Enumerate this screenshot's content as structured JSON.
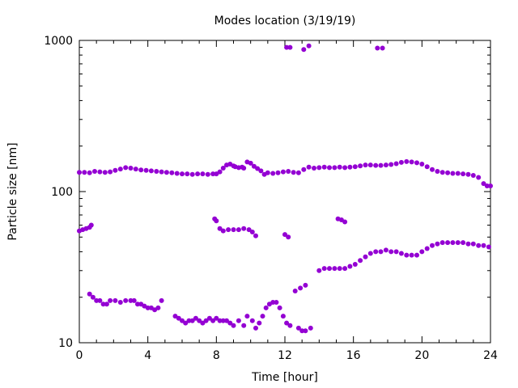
{
  "chart_data": {
    "type": "scatter",
    "title": "Modes location (3/19/19)",
    "xlabel": "Time [hour]",
    "ylabel": "Particle size [nm]",
    "xlim": [
      0,
      24
    ],
    "ylim": [
      10,
      1000
    ],
    "yscale": "log",
    "x_ticks": [
      0,
      4,
      8,
      12,
      16,
      20,
      24
    ],
    "y_ticks": [
      10,
      100,
      1000
    ],
    "grid": false,
    "marker_color": "#9400d3",
    "series": [
      {
        "points": [
          [
            0.0,
            134
          ],
          [
            0.3,
            134
          ],
          [
            0.6,
            133
          ],
          [
            0.9,
            136
          ],
          [
            1.2,
            135
          ],
          [
            1.5,
            134
          ],
          [
            1.8,
            135
          ],
          [
            2.1,
            138
          ],
          [
            2.4,
            141
          ],
          [
            2.7,
            144
          ],
          [
            3.0,
            143
          ],
          [
            3.3,
            141
          ],
          [
            3.6,
            139
          ],
          [
            3.9,
            138
          ],
          [
            4.2,
            137
          ],
          [
            4.5,
            136
          ],
          [
            4.8,
            135
          ],
          [
            5.1,
            134
          ],
          [
            5.4,
            133
          ],
          [
            5.7,
            132
          ],
          [
            6.0,
            131
          ],
          [
            6.3,
            131
          ],
          [
            6.6,
            130
          ],
          [
            6.9,
            131
          ],
          [
            7.2,
            131
          ],
          [
            7.5,
            130
          ],
          [
            7.8,
            131
          ],
          [
            8.0,
            131
          ],
          [
            8.2,
            135
          ],
          [
            8.4,
            143
          ],
          [
            8.6,
            150
          ],
          [
            8.8,
            152
          ],
          [
            9.0,
            148
          ],
          [
            9.1,
            146
          ],
          [
            9.3,
            144
          ],
          [
            9.5,
            145
          ],
          [
            9.6,
            143
          ],
          [
            9.8,
            157
          ],
          [
            10.0,
            154
          ],
          [
            10.2,
            147
          ],
          [
            10.4,
            142
          ],
          [
            10.6,
            137
          ],
          [
            10.8,
            130
          ],
          [
            11.0,
            133
          ],
          [
            11.3,
            132
          ],
          [
            11.6,
            133
          ],
          [
            11.9,
            135
          ],
          [
            12.2,
            136
          ],
          [
            12.5,
            134
          ],
          [
            12.8,
            133
          ],
          [
            13.1,
            140
          ],
          [
            13.4,
            145
          ],
          [
            13.7,
            143
          ],
          [
            14.0,
            144
          ],
          [
            14.3,
            145
          ],
          [
            14.6,
            144
          ],
          [
            14.9,
            144
          ],
          [
            15.2,
            145
          ],
          [
            15.5,
            144
          ],
          [
            15.8,
            145
          ],
          [
            16.1,
            146
          ],
          [
            16.4,
            148
          ],
          [
            16.7,
            150
          ],
          [
            17.0,
            150
          ],
          [
            17.3,
            149
          ],
          [
            17.6,
            149
          ],
          [
            17.9,
            150
          ],
          [
            18.2,
            151
          ],
          [
            18.5,
            153
          ],
          [
            18.8,
            156
          ],
          [
            19.1,
            158
          ],
          [
            19.4,
            157
          ],
          [
            19.7,
            155
          ],
          [
            20.0,
            152
          ],
          [
            20.3,
            146
          ],
          [
            20.6,
            140
          ],
          [
            20.9,
            136
          ],
          [
            21.2,
            134
          ],
          [
            21.5,
            133
          ],
          [
            21.8,
            132
          ],
          [
            22.1,
            132
          ],
          [
            22.4,
            131
          ],
          [
            22.7,
            130
          ],
          [
            23.0,
            128
          ],
          [
            23.3,
            124
          ],
          [
            23.6,
            113
          ],
          [
            23.8,
            109
          ],
          [
            24.0,
            109
          ]
        ]
      },
      {
        "points": [
          [
            0.0,
            55
          ],
          [
            0.2,
            56
          ],
          [
            0.4,
            57
          ],
          [
            0.6,
            58
          ],
          [
            0.7,
            60
          ],
          [
            7.9,
            66
          ],
          [
            8.0,
            64
          ],
          [
            8.2,
            57
          ],
          [
            8.4,
            55
          ],
          [
            8.7,
            56
          ],
          [
            9.0,
            56
          ],
          [
            9.3,
            56
          ],
          [
            9.6,
            57
          ],
          [
            9.9,
            56
          ],
          [
            10.1,
            54
          ],
          [
            10.3,
            51
          ],
          [
            12.0,
            52
          ],
          [
            12.2,
            50
          ],
          [
            15.1,
            66
          ],
          [
            15.3,
            65
          ],
          [
            15.5,
            63
          ],
          [
            14.0,
            30
          ],
          [
            14.3,
            31
          ],
          [
            14.6,
            31
          ],
          [
            14.9,
            31
          ],
          [
            15.2,
            31
          ],
          [
            15.5,
            31
          ],
          [
            15.8,
            32
          ],
          [
            16.1,
            33
          ],
          [
            16.4,
            35
          ],
          [
            16.7,
            37
          ],
          [
            17.0,
            39
          ],
          [
            17.3,
            40
          ],
          [
            17.6,
            40
          ],
          [
            17.9,
            41
          ],
          [
            18.2,
            40
          ],
          [
            18.5,
            40
          ],
          [
            18.8,
            39
          ],
          [
            19.1,
            38
          ],
          [
            19.4,
            38
          ],
          [
            19.7,
            38
          ],
          [
            20.0,
            40
          ],
          [
            20.3,
            42
          ],
          [
            20.6,
            44
          ],
          [
            20.9,
            45
          ],
          [
            21.2,
            46
          ],
          [
            21.5,
            46
          ],
          [
            21.8,
            46
          ],
          [
            22.1,
            46
          ],
          [
            22.4,
            46
          ],
          [
            22.7,
            45
          ],
          [
            23.0,
            45
          ],
          [
            23.3,
            44
          ],
          [
            23.6,
            44
          ],
          [
            23.9,
            43
          ]
        ]
      },
      {
        "points": [
          [
            0.6,
            21
          ],
          [
            0.8,
            20
          ],
          [
            1.0,
            19
          ],
          [
            1.2,
            19
          ],
          [
            1.4,
            18
          ],
          [
            1.6,
            18
          ],
          [
            1.8,
            19
          ],
          [
            2.1,
            19
          ],
          [
            2.4,
            18.5
          ],
          [
            2.7,
            19
          ],
          [
            3.0,
            19
          ],
          [
            3.2,
            19
          ],
          [
            3.4,
            18
          ],
          [
            3.6,
            18
          ],
          [
            3.8,
            17.5
          ],
          [
            4.0,
            17
          ],
          [
            4.2,
            17
          ],
          [
            4.4,
            16.5
          ],
          [
            4.6,
            17
          ],
          [
            4.8,
            19
          ],
          [
            5.6,
            15
          ],
          [
            5.8,
            14.5
          ],
          [
            6.0,
            14
          ],
          [
            6.2,
            13.5
          ],
          [
            6.4,
            14
          ],
          [
            6.6,
            14
          ],
          [
            6.8,
            14.5
          ],
          [
            7.0,
            14
          ],
          [
            7.2,
            13.5
          ],
          [
            7.4,
            14
          ],
          [
            7.6,
            14.5
          ],
          [
            7.8,
            14
          ],
          [
            8.0,
            14.5
          ],
          [
            8.2,
            14
          ],
          [
            8.4,
            14
          ],
          [
            8.6,
            14
          ],
          [
            8.8,
            13.5
          ],
          [
            9.0,
            13
          ],
          [
            9.3,
            14
          ],
          [
            9.6,
            13
          ],
          [
            9.8,
            15
          ],
          [
            10.1,
            14
          ],
          [
            10.3,
            12.5
          ],
          [
            10.5,
            13.5
          ],
          [
            10.7,
            15
          ],
          [
            10.9,
            17
          ],
          [
            11.1,
            18
          ],
          [
            11.3,
            18.5
          ],
          [
            11.5,
            18.5
          ],
          [
            11.7,
            17
          ],
          [
            11.9,
            15
          ],
          [
            12.1,
            13.5
          ],
          [
            12.3,
            13
          ],
          [
            12.6,
            22
          ],
          [
            12.9,
            23
          ],
          [
            13.2,
            24
          ],
          [
            12.8,
            12.5
          ],
          [
            13.0,
            12
          ],
          [
            13.2,
            12
          ],
          [
            13.5,
            12.5
          ]
        ]
      },
      {
        "points": [
          [
            12.1,
            900
          ],
          [
            12.3,
            900
          ],
          [
            13.1,
            870
          ],
          [
            13.4,
            920
          ],
          [
            17.4,
            890
          ],
          [
            17.7,
            890
          ]
        ]
      }
    ]
  }
}
